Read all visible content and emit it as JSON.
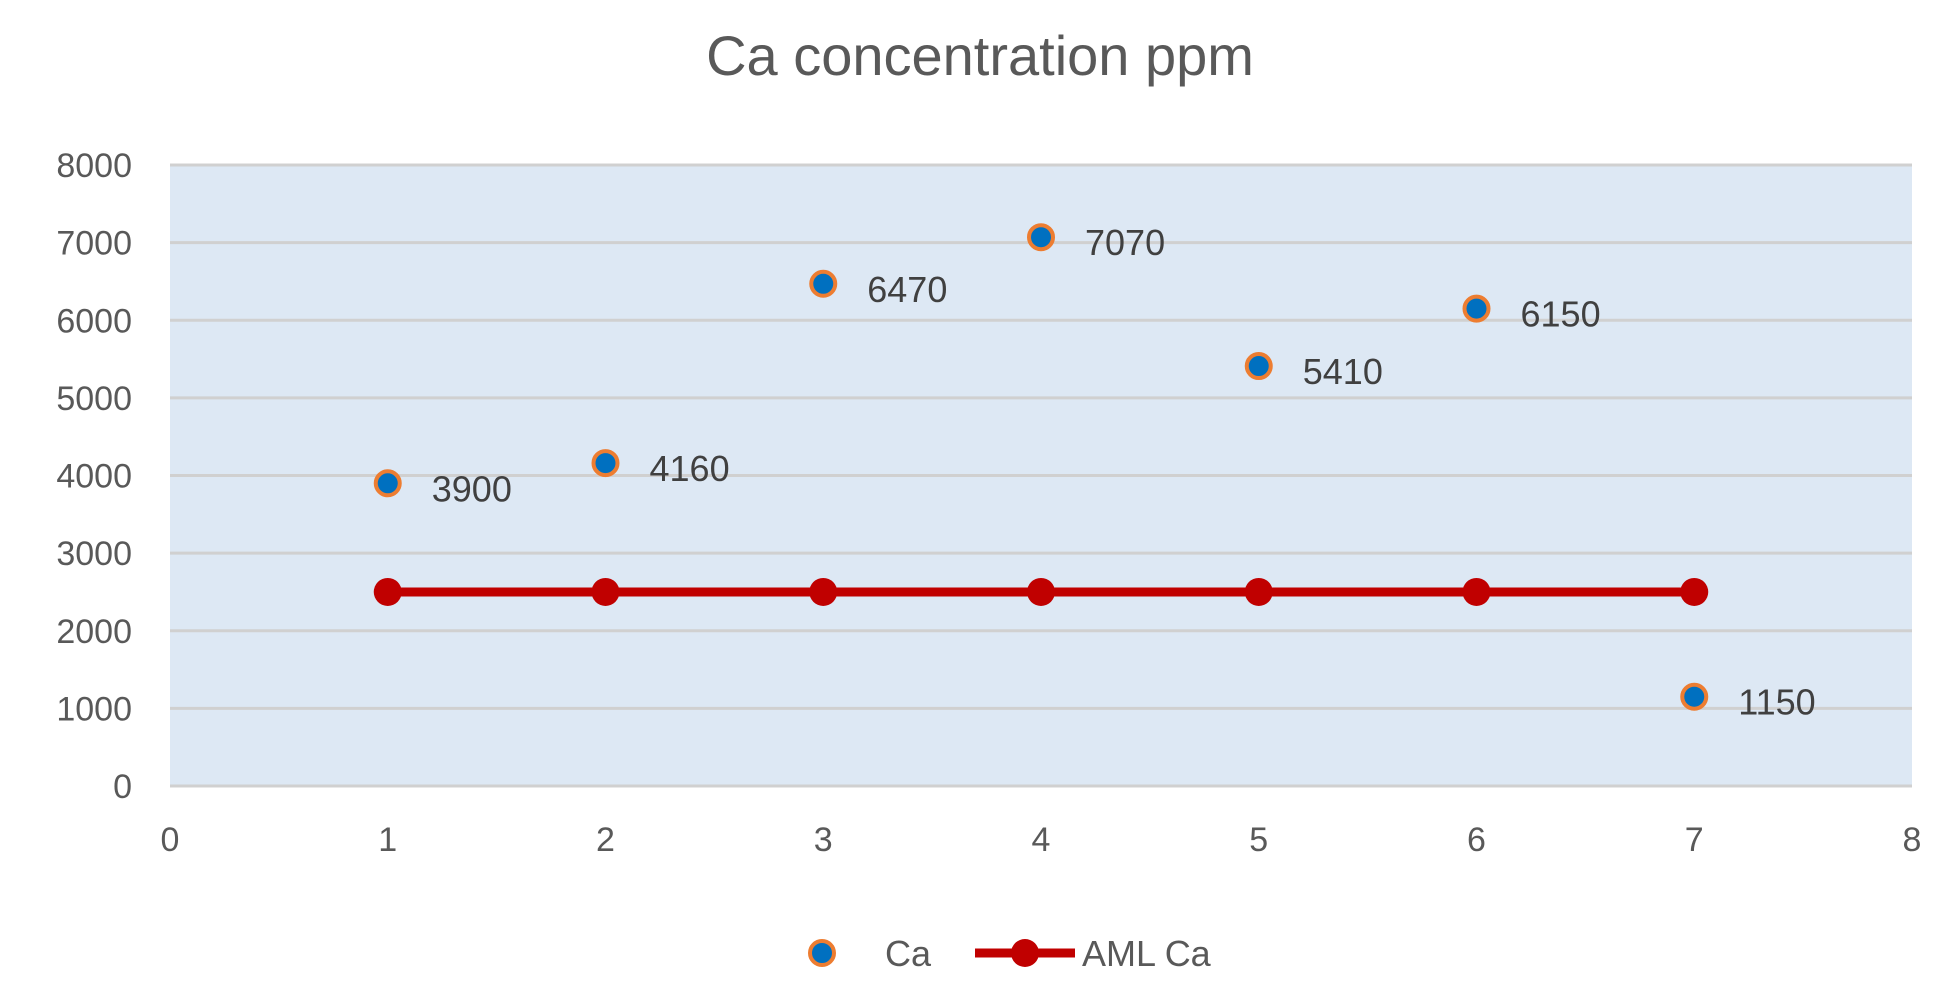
{
  "chart_data": {
    "type": "scatter",
    "title": "Ca concentration ppm",
    "xlabel": "",
    "ylabel": "",
    "xlim": [
      0,
      8
    ],
    "ylim": [
      0,
      8000
    ],
    "x_ticks": [
      0,
      1,
      2,
      3,
      4,
      5,
      6,
      7,
      8
    ],
    "y_ticks": [
      0,
      1000,
      2000,
      3000,
      4000,
      5000,
      6000,
      7000,
      8000
    ],
    "grid": "horizontal",
    "legend_position": "bottom",
    "plot_background": "#dde8f4",
    "series": [
      {
        "name": "Ca",
        "kind": "scatter",
        "marker_fill": "#0070c0",
        "marker_edge": "#ed7d31",
        "show_data_labels": true,
        "points": [
          {
            "x": 1,
            "y": 3900
          },
          {
            "x": 2,
            "y": 4160
          },
          {
            "x": 3,
            "y": 6470
          },
          {
            "x": 4,
            "y": 7070
          },
          {
            "x": 5,
            "y": 5410
          },
          {
            "x": 6,
            "y": 6150
          },
          {
            "x": 7,
            "y": 1150
          }
        ]
      },
      {
        "name": "AML Ca",
        "kind": "line",
        "color": "#c00000",
        "show_data_labels": false,
        "points": [
          {
            "x": 1,
            "y": 2500
          },
          {
            "x": 2,
            "y": 2500
          },
          {
            "x": 3,
            "y": 2500
          },
          {
            "x": 4,
            "y": 2500
          },
          {
            "x": 5,
            "y": 2500
          },
          {
            "x": 6,
            "y": 2500
          },
          {
            "x": 7,
            "y": 2500
          }
        ]
      }
    ]
  }
}
